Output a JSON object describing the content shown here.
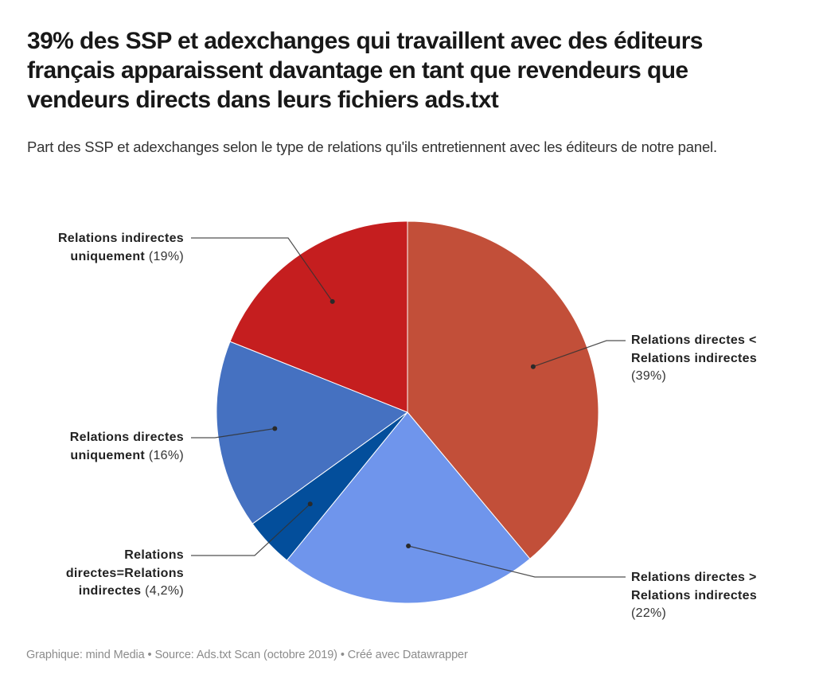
{
  "title": "39% des SSP et adexchanges qui travaillent avec des éditeurs français apparaissent davantage en tant que revendeurs que vendeurs directs dans leurs fichiers ads.txt",
  "subtitle": "Part des SSP et adexchanges selon le type de relations qu'ils entretiennent avec les éditeurs de notre panel.",
  "footer": "Graphique: mind Media • Source: Ads.txt Scan (octobre 2019) • Créé avec Datawrapper",
  "chart_data": {
    "type": "pie",
    "title": "39% des SSP et adexchanges qui travaillent avec des éditeurs français apparaissent davantage en tant que revendeurs que vendeurs directs dans leurs fichiers ads.txt",
    "subtitle": "Part des SSP et adexchanges selon le type de relations qu'ils entretiennent avec les éditeurs de notre panel.",
    "start": "top",
    "direction": "clockwise",
    "slices": [
      {
        "label": "Relations directes < Relations indirectes",
        "label_lines": [
          "Relations directes <",
          "Relations indirectes"
        ],
        "value": 39,
        "value_label": "(39%)",
        "color": "#c24f39"
      },
      {
        "label": "Relations directes > Relations indirectes",
        "label_lines": [
          "Relations directes >",
          "Relations indirectes"
        ],
        "value": 22,
        "value_label": "(22%)",
        "color": "#6f95ec"
      },
      {
        "label": "Relations directes=Relations indirectes",
        "label_lines": [
          "Relations",
          "directes=Relations",
          "indirectes"
        ],
        "value": 4.2,
        "value_label": "(4,2%)",
        "color": "#034e9b"
      },
      {
        "label": "Relations directes uniquement",
        "label_lines": [
          "Relations directes",
          "uniquement"
        ],
        "value": 16,
        "value_label": "(16%)",
        "color": "#4571c1"
      },
      {
        "label": "Relations indirectes uniquement",
        "label_lines": [
          "Relations indirectes",
          "uniquement"
        ],
        "value": 19,
        "value_label": "(19%)",
        "color": "#c51e1f"
      }
    ]
  }
}
